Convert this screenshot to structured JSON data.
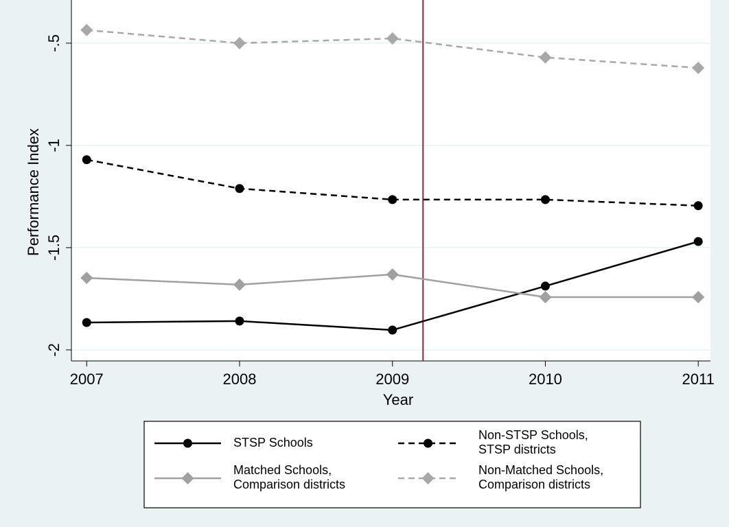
{
  "chart_data": {
    "type": "line",
    "x_label": "Year",
    "y_label": "Performance Index",
    "x": [
      2007,
      2008,
      2009,
      2010,
      2011
    ],
    "series": [
      {
        "name": "STSP Schools",
        "color": "#000000",
        "dash": false,
        "marker": "circle",
        "values": [
          -1.866,
          -1.859,
          -1.903,
          -1.688,
          -1.47
        ]
      },
      {
        "name": "Non-STSP Schools, STSP districts",
        "color": "#000000",
        "dash": true,
        "marker": "circle",
        "values": [
          -1.07,
          -1.211,
          -1.265,
          -1.265,
          -1.295
        ]
      },
      {
        "name": "Matched Schools, Comparison districts",
        "color": "#a0a0a0",
        "dash": false,
        "marker": "diamond",
        "values": [
          -1.648,
          -1.681,
          -1.631,
          -1.742,
          -1.742
        ]
      },
      {
        "name": "Non-Matched Schools, Comparison districts",
        "color": "#a8a8a8",
        "dash": true,
        "marker": "diamond",
        "values": [
          -0.436,
          -0.5,
          -0.477,
          -0.57,
          -0.621
        ]
      }
    ],
    "xlim": [
      2006.9,
      2011.08
    ],
    "xticks": [
      2007,
      2008,
      2009,
      2010,
      2011
    ],
    "ylim": [
      -2.054,
      -0.289
    ],
    "yticks": [
      {
        "value": -2,
        "label": "-2"
      },
      {
        "value": -1.5,
        "label": "-1.5"
      },
      {
        "value": -1,
        "label": "-1"
      },
      {
        "value": -0.5,
        "label": "-.5"
      }
    ],
    "grid": true,
    "vline": 2009.2,
    "vline_color": "#a3173a"
  }
}
